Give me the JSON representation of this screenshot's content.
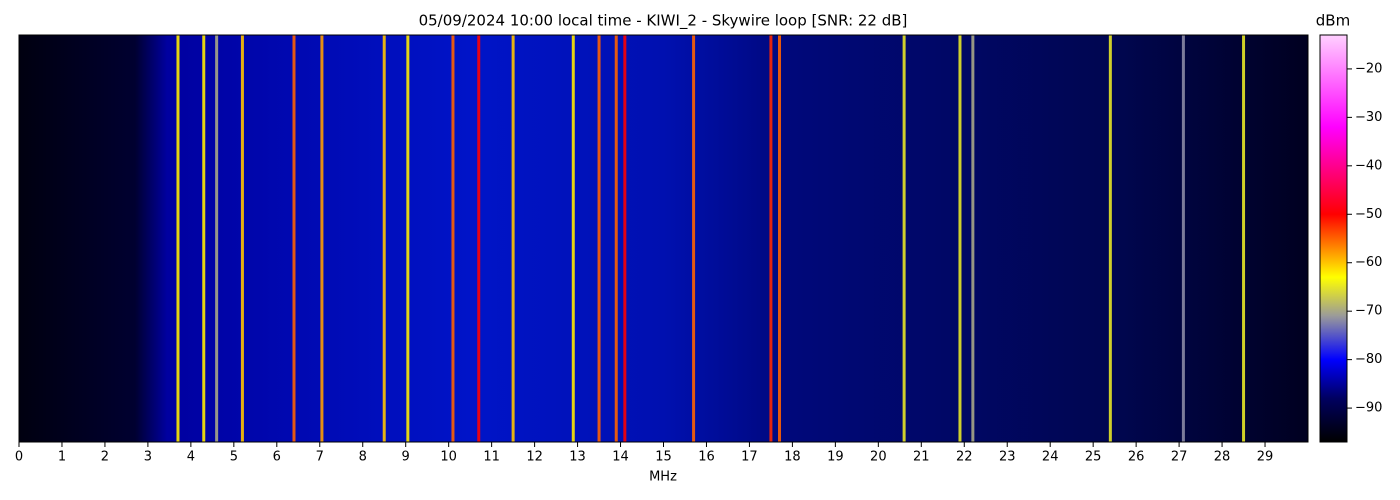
{
  "chart_data": {
    "type": "heatmap",
    "title": "05/09/2024 10:00 local time - KIWI_2 - Skywire loop [SNR: 22 dB]",
    "xlabel": "MHz",
    "colorbar_label": "dBm",
    "x": [
      3.7,
      4.3,
      4.6,
      5.2,
      6.4,
      7.05,
      8.5,
      9.05,
      10.1,
      10.7,
      11.5,
      12.9,
      13.5,
      13.9,
      14.1,
      15.7,
      17.5,
      17.7,
      20.6,
      21.9,
      22.2,
      25.4,
      27.1,
      28.5
    ],
    "values": [
      -62,
      -62,
      -70,
      -60,
      -55,
      -58,
      -60,
      -62,
      -55,
      -50,
      -60,
      -62,
      -55,
      -55,
      -50,
      -55,
      -52,
      -55,
      -65,
      -65,
      -70,
      -65,
      -72,
      -65
    ],
    "xlim": [
      0,
      30
    ],
    "xticks": [
      0,
      1,
      2,
      3,
      4,
      5,
      6,
      7,
      8,
      9,
      10,
      11,
      12,
      13,
      14,
      15,
      16,
      17,
      18,
      19,
      20,
      21,
      22,
      23,
      24,
      25,
      26,
      27,
      28,
      29
    ],
    "clim": [
      -97,
      -13
    ],
    "cticks": [
      {
        "value": -20,
        "label": "−20"
      },
      {
        "value": -30,
        "label": "−30"
      },
      {
        "value": -40,
        "label": "−40"
      },
      {
        "value": -50,
        "label": "−50"
      },
      {
        "value": -60,
        "label": "−60"
      },
      {
        "value": -70,
        "label": "−70"
      },
      {
        "value": -80,
        "label": "−80"
      },
      {
        "value": -90,
        "label": "−90"
      }
    ],
    "colormap": [
      {
        "value": -97,
        "color": "#000000"
      },
      {
        "value": -88,
        "color": "#000060"
      },
      {
        "value": -80,
        "color": "#0000ff"
      },
      {
        "value": -71,
        "color": "#9a9a9a"
      },
      {
        "value": -63,
        "color": "#ffff00"
      },
      {
        "value": -50,
        "color": "#ff0000"
      },
      {
        "value": -32,
        "color": "#ff00ff"
      },
      {
        "value": -13,
        "color": "#ffd0ff"
      }
    ]
  }
}
